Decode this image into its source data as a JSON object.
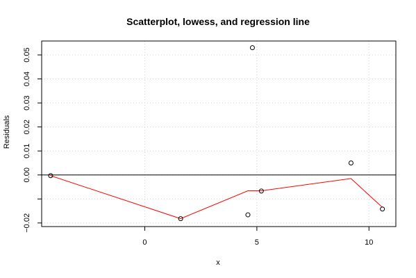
{
  "chart_data": {
    "type": "scatter",
    "title": "Scatterplot, lowess, and regression line",
    "xlabel": "x",
    "ylabel": "Residuals",
    "xlim": [
      -4.6,
      11.2
    ],
    "ylim": [
      -0.0215,
      0.0558
    ],
    "x_ticks": [
      0,
      5,
      10
    ],
    "y_ticks": [
      -0.02,
      -0.01,
      0.0,
      0.01,
      0.02,
      0.03,
      0.04,
      0.05
    ],
    "y_tick_labels": [
      "−0.02",
      "",
      "0.00",
      "0.01",
      "0.02",
      "0.03",
      "0.04",
      "0.05"
    ],
    "grid": true,
    "points": [
      {
        "x": -4.2,
        "y": -0.0003
      },
      {
        "x": 1.6,
        "y": -0.0182
      },
      {
        "x": 4.6,
        "y": -0.0166
      },
      {
        "x": 4.8,
        "y": 0.053
      },
      {
        "x": 5.2,
        "y": -0.0067
      },
      {
        "x": 9.2,
        "y": 0.005
      },
      {
        "x": 10.6,
        "y": -0.0142
      }
    ],
    "lowess": {
      "x": [
        -4.2,
        1.6,
        4.6,
        5.2,
        9.2,
        10.6
      ],
      "y": [
        -0.0003,
        -0.0182,
        -0.0066,
        -0.0066,
        -0.0015,
        -0.0135
      ]
    },
    "regression_line": {
      "y": 0.0
    },
    "colors": {
      "points": "#000000",
      "lowess": "#ff0000",
      "regression": "#000000",
      "grid": "#d3d3d3"
    }
  }
}
